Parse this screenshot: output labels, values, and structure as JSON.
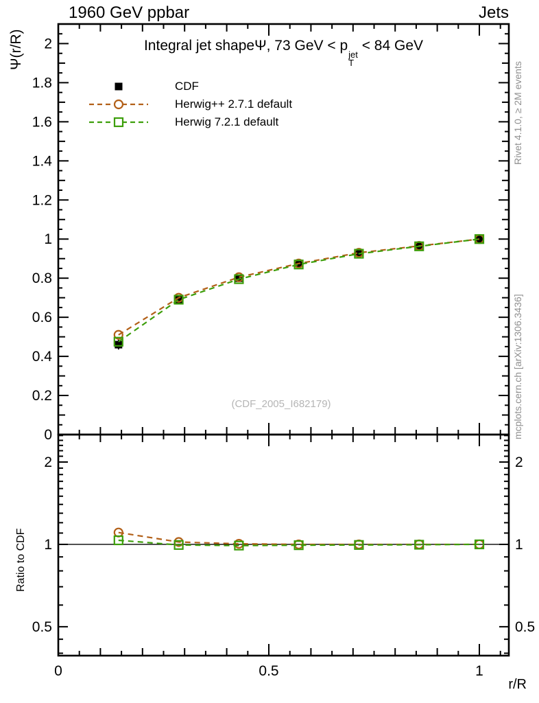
{
  "header": {
    "left_label": "1960 GeV ppbar",
    "right_label": "Jets"
  },
  "title": {
    "part1": "Integral jet shape",
    "psi": "Ψ",
    "part2": ", 73 GeV < p",
    "p_sup": "jet",
    "p_sub": "T",
    "part3": " < 84 GeV"
  },
  "legend": {
    "items": [
      {
        "label": "CDF",
        "marker": "filled-square",
        "color": "#000000",
        "line": "none"
      },
      {
        "label": "Herwig++ 2.7.1 default",
        "marker": "open-circle",
        "color": "#b25f17",
        "line": "dashed"
      },
      {
        "label": "Herwig 7.2.1 default",
        "marker": "open-square",
        "color": "#3c9e0a",
        "line": "dashed"
      }
    ]
  },
  "watermark": "(CDF_2005_I682179)",
  "side_notes": {
    "rivet": "Rivet 4.1.0, ≥ 2M events",
    "mcplots": "mcplots.cern.ch [arXiv:1306.3436]"
  },
  "axes": {
    "x_label": "r/R",
    "main_y_label": "Ψ(r/R)",
    "ratio_y_label": "Ratio to CDF"
  },
  "colors": {
    "frame": "#000000",
    "gray_text": "#8f8f8f",
    "watermark_text": "#b5b5b5"
  },
  "chart_data": [
    {
      "type": "line",
      "panel": "main",
      "title": "Integral jet shape Ψ, 73 GeV < p_T^jet < 84 GeV",
      "xlabel": "r/R",
      "ylabel": "Ψ(r/R)",
      "xlim": [
        0,
        1.07
      ],
      "ylim": [
        0,
        2.1
      ],
      "grid": false,
      "legend_position": "top-left",
      "x": [
        0.143,
        0.286,
        0.429,
        0.571,
        0.714,
        0.857,
        1.0
      ],
      "series": [
        {
          "name": "CDF",
          "marker": "filled-square",
          "color": "#000000",
          "linestyle": "none",
          "values": [
            0.46,
            0.69,
            0.8,
            0.875,
            0.93,
            0.965,
            1.0
          ],
          "yerr": [
            0.025,
            0.018,
            0.014,
            0.012,
            0.01,
            0.008,
            0.004
          ]
        },
        {
          "name": "Herwig++ 2.7.1 default",
          "marker": "open-circle",
          "color": "#b25f17",
          "linestyle": "dashed",
          "values": [
            0.51,
            0.7,
            0.805,
            0.875,
            0.93,
            0.965,
            1.0
          ]
        },
        {
          "name": "Herwig 7.2.1 default",
          "marker": "open-square",
          "color": "#3c9e0a",
          "linestyle": "dashed",
          "values": [
            0.475,
            0.69,
            0.795,
            0.87,
            0.925,
            0.963,
            1.0
          ]
        }
      ],
      "xticks": {
        "major": [
          0,
          0.5,
          1
        ],
        "labels": [
          "0",
          "0.5",
          "1"
        ],
        "medium_step": 0.1,
        "minor_step": 0.05
      },
      "yticks": {
        "major_step": 0.2,
        "labels": [
          "0",
          "0.2",
          "0.4",
          "0.6",
          "0.8",
          "1",
          "1.2",
          "1.4",
          "1.6",
          "1.8",
          "2"
        ],
        "medium_step": 0.1,
        "minor_step": 0.05
      }
    },
    {
      "type": "line",
      "panel": "ratio",
      "ylabel": "Ratio to CDF",
      "yscale": "log",
      "ylim": [
        0.392,
        2.52
      ],
      "grid": false,
      "refline": 1.0,
      "x": [
        0.143,
        0.286,
        0.429,
        0.571,
        0.714,
        0.857,
        1.0
      ],
      "series": [
        {
          "name": "Herwig++ 2.7.1 default",
          "marker": "open-circle",
          "color": "#b25f17",
          "linestyle": "dashed",
          "values": [
            1.105,
            1.02,
            1.005,
            1.0,
            1.0,
            1.0,
            1.0
          ]
        },
        {
          "name": "Herwig 7.2.1 default",
          "marker": "open-square",
          "color": "#3c9e0a",
          "linestyle": "dashed",
          "values": [
            1.035,
            0.995,
            0.99,
            0.993,
            0.995,
            0.997,
            1.0
          ]
        }
      ],
      "yticks": {
        "major": [
          0.5,
          1,
          2
        ],
        "labels": [
          "0.5",
          "1",
          "2"
        ],
        "minor": [
          0.4,
          0.45,
          0.6,
          0.7,
          0.8,
          0.9,
          1.1,
          1.2,
          1.3,
          1.4,
          1.5,
          1.6,
          1.7,
          1.8,
          1.9,
          2.1,
          2.2,
          2.3,
          2.4,
          2.5
        ]
      }
    }
  ]
}
